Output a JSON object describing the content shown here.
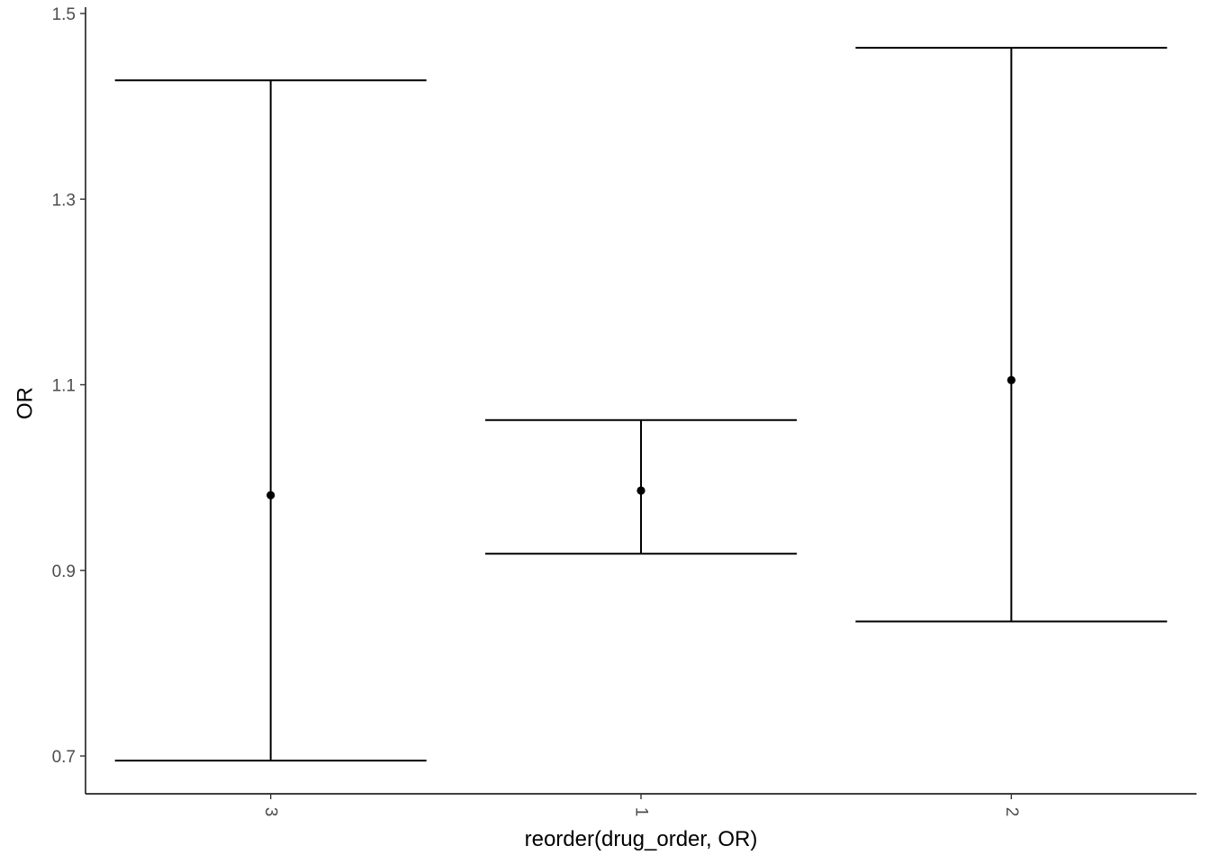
{
  "chart_data": {
    "type": "scatter",
    "subtype": "errorbar",
    "title": "",
    "xlabel": "reorder(drug_order, OR)",
    "ylabel": "OR",
    "categories": [
      "3",
      "1",
      "2"
    ],
    "series": [
      {
        "values": [
          0.981,
          0.986,
          1.105
        ],
        "lower": [
          0.695,
          0.918,
          0.845
        ],
        "upper": [
          1.428,
          1.062,
          1.463
        ]
      }
    ],
    "ylim": [
      0.658,
      1.5
    ],
    "yticks": [
      "0.7",
      "0.9",
      "1.1",
      "1.3",
      "1.5"
    ],
    "x_tick_rotation": 90,
    "grid": false,
    "legend": "none",
    "colors": {
      "mark": "#000000",
      "axis": "#000000",
      "tick_label": "#4d4d4d"
    }
  }
}
